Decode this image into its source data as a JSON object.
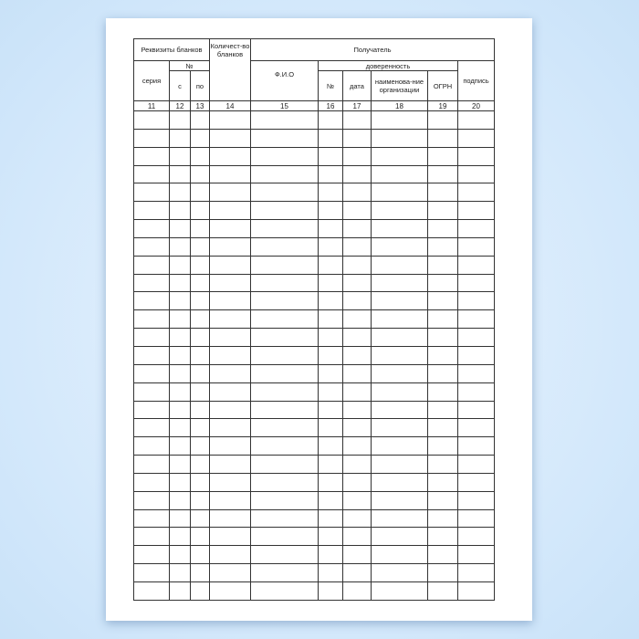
{
  "header": {
    "requisites": "Реквизиты бланков",
    "quantity": "Количест-во бланков",
    "recipient": "Получатель",
    "series": "серия",
    "number": "№",
    "from": "с",
    "to": "по",
    "fio": "Ф.И.О",
    "power_of_attorney": "доверенность",
    "poa_number": "№",
    "date": "дата",
    "org_name": "наименова-ние организации",
    "ogrn": "ОГРН",
    "signature": "подпись"
  },
  "column_numbers": [
    "11",
    "12",
    "13",
    "14",
    "15",
    "16",
    "17",
    "18",
    "19",
    "20"
  ],
  "empty_rows": 27
}
